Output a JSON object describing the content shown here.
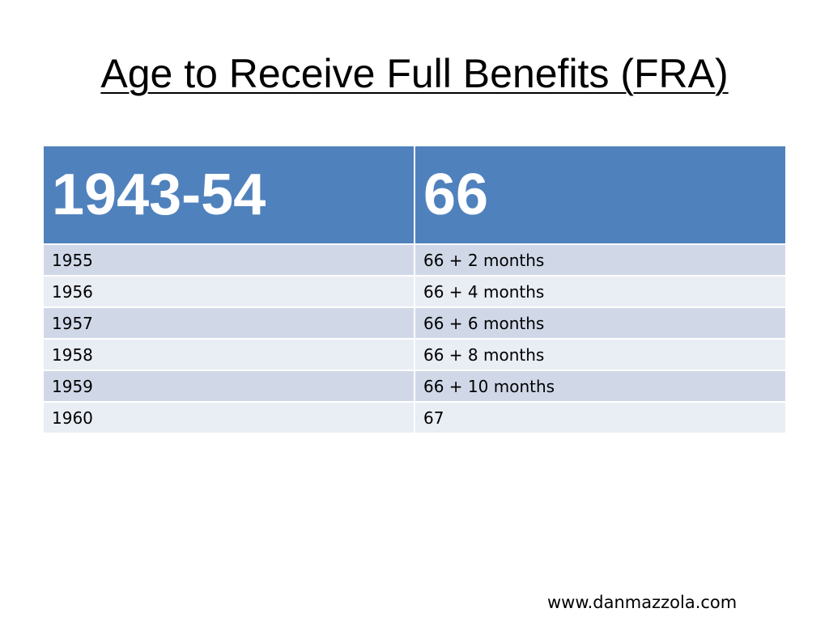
{
  "title": "Age to Receive Full Benefits (FRA)",
  "table": {
    "header": [
      "1943-54",
      "66"
    ],
    "rows": [
      [
        "1955",
        "66 + 2 months"
      ],
      [
        "1956",
        "66 + 4 months"
      ],
      [
        "1957",
        "66 + 6 months"
      ],
      [
        "1958",
        "66 + 8 months"
      ],
      [
        "1959",
        "66 + 10 months"
      ],
      [
        "1960",
        "67"
      ]
    ]
  },
  "footer": "www.danmazzola.com"
}
